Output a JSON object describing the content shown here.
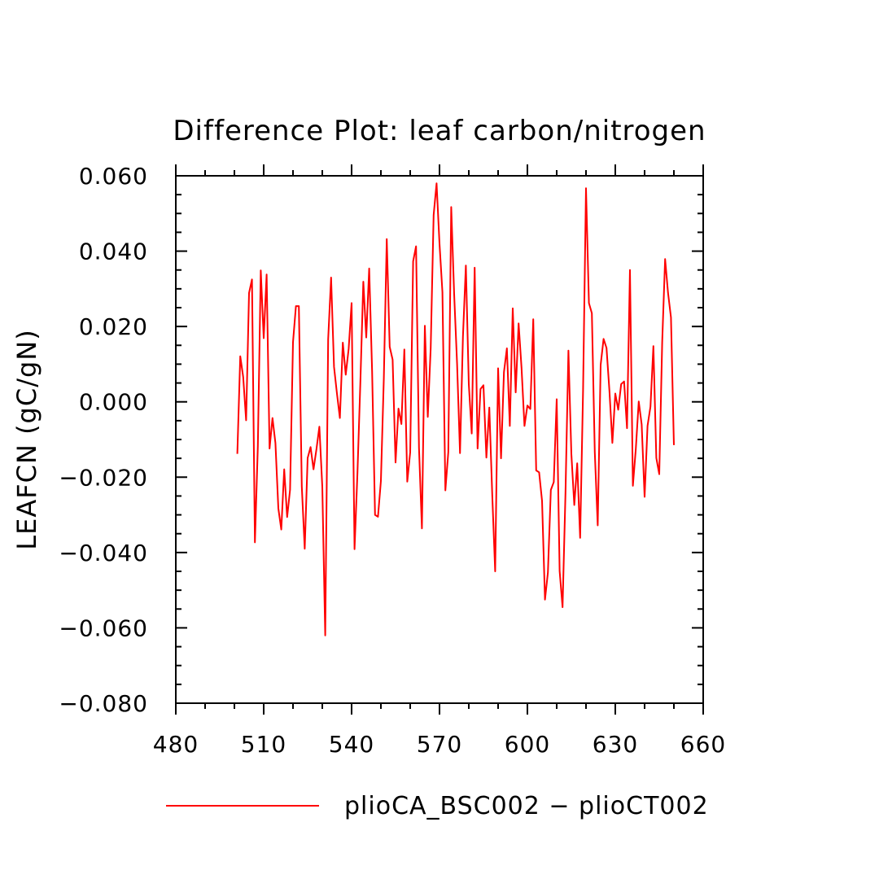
{
  "chart_data": {
    "type": "line",
    "title": "Difference Plot: leaf carbon/nitrogen",
    "xlabel": "",
    "ylabel": "LEAFCN  (gC/gN)",
    "xlim": [
      480,
      660
    ],
    "ylim": [
      -0.08,
      0.06
    ],
    "x_ticks": [
      480,
      510,
      540,
      570,
      600,
      630,
      660
    ],
    "x_tick_labels": [
      "480",
      "510",
      "540",
      "570",
      "600",
      "630",
      "660"
    ],
    "y_ticks": [
      0.06,
      0.04,
      0.02,
      0.0,
      -0.02,
      -0.04,
      -0.06,
      -0.08
    ],
    "y_tick_labels": [
      "0.060",
      "0.040",
      "0.020",
      "0.000",
      "−0.020",
      "−0.040",
      "−0.060",
      "−0.080"
    ],
    "grid": false,
    "legend_position": "bottom",
    "series": [
      {
        "name": "plioCA_BSC002 − plioCT002",
        "color": "#ff0000",
        "x": [
          501,
          502,
          503,
          504,
          505,
          506,
          507,
          508,
          509,
          510,
          511,
          512,
          513,
          514,
          515,
          516,
          517,
          518,
          519,
          520,
          521,
          522,
          523,
          524,
          525,
          526,
          527,
          528,
          529,
          530,
          531,
          532,
          533,
          534,
          535,
          536,
          537,
          538,
          539,
          540,
          541,
          542,
          543,
          544,
          545,
          546,
          547,
          548,
          549,
          550,
          551,
          552,
          553,
          554,
          555,
          556,
          557,
          558,
          559,
          560,
          561,
          562,
          563,
          564,
          565,
          566,
          567,
          568,
          569,
          570,
          571,
          572,
          573,
          574,
          575,
          576,
          577,
          578,
          579,
          580,
          581,
          582,
          583,
          584,
          585,
          586,
          587,
          588,
          589,
          590,
          591,
          592,
          593,
          594,
          595,
          596,
          597,
          598,
          599,
          600,
          601,
          602,
          603,
          604,
          605,
          606,
          607,
          608,
          609,
          610,
          611,
          612,
          613,
          614,
          615,
          616,
          617,
          618,
          619,
          620,
          621,
          622,
          623,
          624,
          625,
          626,
          627,
          628,
          629,
          630,
          631,
          632,
          633,
          634,
          635,
          636,
          637,
          638,
          639,
          640,
          641,
          642,
          643,
          644,
          645,
          646,
          647,
          648,
          649,
          650
        ],
        "values": [
          -0.0138,
          0.0121,
          0.0066,
          -0.0049,
          0.0289,
          0.0325,
          -0.0373,
          -0.0118,
          0.0349,
          0.0169,
          0.0338,
          -0.0124,
          -0.0043,
          -0.0109,
          -0.0283,
          -0.0339,
          -0.0179,
          -0.0306,
          -0.0233,
          0.0158,
          0.0254,
          0.0254,
          -0.0224,
          -0.039,
          -0.0149,
          -0.012,
          -0.0179,
          -0.0126,
          -0.0066,
          -0.0225,
          -0.062,
          0.0166,
          0.033,
          0.0093,
          0.0022,
          -0.0043,
          0.0157,
          0.0072,
          0.0141,
          0.0262,
          -0.0391,
          -0.0188,
          0.0054,
          0.0319,
          0.0171,
          0.0354,
          0.0081,
          -0.03,
          -0.0305,
          -0.021,
          0.0063,
          0.0432,
          0.0146,
          0.0112,
          -0.0161,
          -0.0018,
          -0.0059,
          0.0139,
          -0.0212,
          -0.0134,
          0.0373,
          0.0413,
          -0.0122,
          -0.0336,
          0.0202,
          -0.004,
          0.0143,
          0.0496,
          0.058,
          0.042,
          0.0291,
          -0.0235,
          -0.0134,
          0.0517,
          0.0286,
          0.0101,
          -0.0136,
          0.0173,
          0.0362,
          0.0047,
          -0.0084,
          0.0356,
          -0.0124,
          0.0034,
          0.0044,
          -0.0148,
          -0.0015,
          -0.0246,
          -0.045,
          0.0089,
          -0.015,
          0.0079,
          0.0142,
          -0.0064,
          0.0248,
          0.0025,
          0.0208,
          0.009,
          -0.0064,
          -0.001,
          -0.0019,
          0.0219,
          -0.0182,
          -0.0187,
          -0.0263,
          -0.0525,
          -0.0453,
          -0.0234,
          -0.0213,
          0.0007,
          -0.0449,
          -0.0545,
          -0.0242,
          0.0136,
          -0.0138,
          -0.0274,
          -0.0163,
          -0.0361,
          0.003,
          0.0567,
          0.0262,
          0.0235,
          -0.0134,
          -0.0328,
          0.0098,
          0.0167,
          0.0143,
          0.0029,
          -0.0109,
          0.0022,
          -0.0021,
          0.0047,
          0.0054,
          -0.007,
          0.035,
          -0.0223,
          -0.0125,
          0.0001,
          -0.006,
          -0.0252,
          -0.0064,
          -0.0013,
          0.0148,
          -0.0149,
          -0.0192,
          0.0157,
          0.0379,
          0.0289,
          0.0224,
          -0.0115
        ]
      }
    ]
  }
}
